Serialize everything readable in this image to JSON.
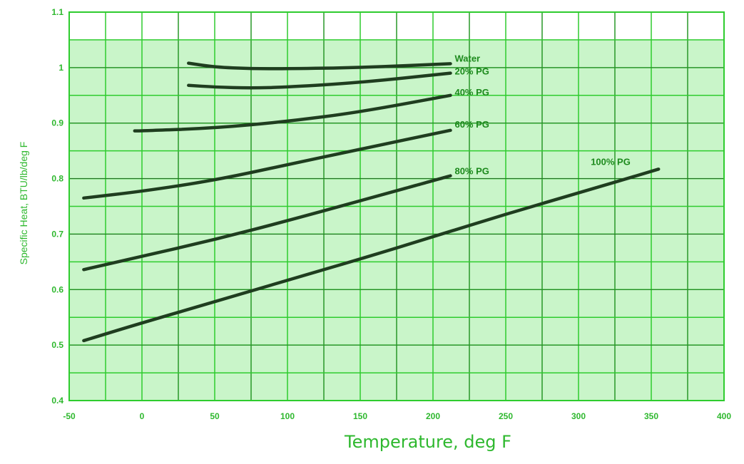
{
  "chart_data": {
    "type": "line",
    "title": "",
    "xlabel": "Temperature, deg F",
    "ylabel": "Specific Heat, BTU/lb/deg F",
    "xlim": [
      -50,
      400
    ],
    "ylim": [
      0.4,
      1.1
    ],
    "x_ticks": [
      "-50",
      "0",
      "50",
      "100",
      "150",
      "200",
      "250",
      "300",
      "350",
      "400"
    ],
    "y_ticks": [
      "0.4",
      "0.5",
      "0.6",
      "0.7",
      "0.8",
      "0.9",
      "1",
      "1.1"
    ],
    "x_gridlines": [
      -50,
      -25,
      0,
      25,
      50,
      75,
      100,
      125,
      150,
      175,
      200,
      225,
      250,
      275,
      300,
      325,
      350,
      375,
      400
    ],
    "y_gridlines": [
      0.4,
      0.45,
      0.5,
      0.55,
      0.6,
      0.65,
      0.7,
      0.75,
      0.8,
      0.85,
      0.9,
      0.95,
      1.0,
      1.05,
      1.1
    ],
    "shaded_ylim": [
      0.4,
      1.05
    ],
    "grid": true,
    "colors": {
      "plot_fill": "#c9f5c9",
      "grid": "#2ecc2e",
      "grid_major": "#1a1a1a",
      "line": "#1f3d1f",
      "text": "#2eb82e",
      "label_text": "#1c8a1c"
    },
    "series": [
      {
        "name": "Water",
        "x": [
          32,
          50,
          75,
          100,
          150,
          212
        ],
        "y": [
          1.008,
          1.001,
          0.998,
          0.998,
          1.0,
          1.007
        ]
      },
      {
        "name": "20% PG",
        "x": [
          32,
          50,
          75,
          100,
          150,
          212
        ],
        "y": [
          0.968,
          0.965,
          0.963,
          0.965,
          0.973,
          0.99
        ]
      },
      {
        "name": "40% PG",
        "x": [
          -5,
          0,
          50,
          100,
          150,
          212
        ],
        "y": [
          0.886,
          0.886,
          0.891,
          0.903,
          0.92,
          0.95
        ]
      },
      {
        "name": "60% PG",
        "x": [
          -40,
          0,
          50,
          100,
          150,
          212
        ],
        "y": [
          0.765,
          0.777,
          0.797,
          0.825,
          0.853,
          0.887
        ]
      },
      {
        "name": "80% PG",
        "x": [
          -40,
          0,
          50,
          100,
          150,
          212
        ],
        "y": [
          0.636,
          0.66,
          0.69,
          0.724,
          0.76,
          0.805
        ]
      },
      {
        "name": "100% PG",
        "x": [
          -40,
          0,
          50,
          100,
          150,
          200,
          250,
          300,
          355
        ],
        "y": [
          0.508,
          0.54,
          0.578,
          0.617,
          0.655,
          0.695,
          0.736,
          0.774,
          0.817
        ]
      }
    ]
  }
}
